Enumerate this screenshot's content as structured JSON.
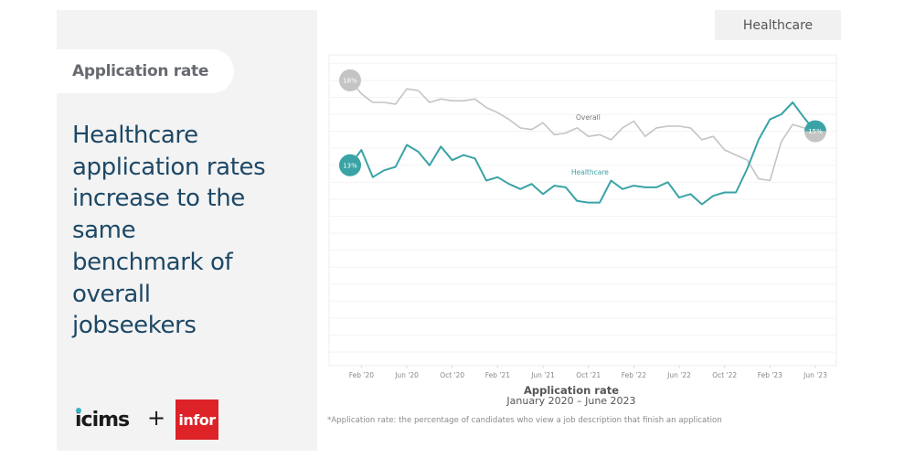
{
  "left_panel": {
    "section_label": "Application rate",
    "headline_lines": [
      "Healthcare",
      "application rates",
      "increase to the",
      "same",
      "benchmark of",
      "overall",
      "jobseekers"
    ],
    "logos": {
      "icims": "icims",
      "plus": "+",
      "infor": "infor"
    }
  },
  "tab": {
    "label": "Healthcare"
  },
  "footnote": "*Application rate: the percentage of candidates who view a job description that finish an application",
  "colors": {
    "overall": "#c4c4c4",
    "healthcare": "#3aa3a6",
    "headline": "#1d4866",
    "infor_red": "#dd2228"
  },
  "chart_data": {
    "type": "line",
    "title": "Application rate",
    "subtitle": "January 2020 – June 2023",
    "xlabel": "Application rate",
    "xsub": "January 2020 – June 2023",
    "ylabel": "",
    "ylim": [
      1.2,
      19.5
    ],
    "grid": true,
    "x_tick_labels": [
      "Feb '20",
      "Jun '20",
      "Oct '20",
      "Feb '21",
      "Jun '21",
      "Oct '21",
      "Feb '22",
      "Jun '22",
      "Oct '22",
      "Feb '23",
      "Jun '23"
    ],
    "x_tick_month_index": [
      1,
      5,
      9,
      13,
      17,
      21,
      25,
      29,
      33,
      37,
      41
    ],
    "x_months": 42,
    "series": [
      {
        "name": "Overall",
        "color": "#c4c4c4",
        "start_label": "18%",
        "values": [
          18.0,
          17.2,
          16.7,
          16.7,
          16.6,
          17.5,
          17.4,
          16.7,
          16.9,
          16.8,
          16.8,
          16.9,
          16.4,
          16.1,
          15.7,
          15.2,
          15.1,
          15.5,
          14.8,
          14.9,
          15.2,
          14.7,
          14.8,
          14.5,
          15.2,
          15.6,
          14.7,
          15.2,
          15.3,
          15.3,
          15.2,
          14.5,
          14.7,
          13.9,
          13.6,
          13.3,
          12.2,
          12.1,
          14.4,
          15.4,
          15.2,
          15.0
        ]
      },
      {
        "name": "Healthcare",
        "color": "#3aa3a6",
        "start_label": "13%",
        "values": [
          13.0,
          13.9,
          12.3,
          12.7,
          12.9,
          14.2,
          13.8,
          13.0,
          14.1,
          13.3,
          13.6,
          13.4,
          12.1,
          12.3,
          11.9,
          11.6,
          11.9,
          11.3,
          11.8,
          11.7,
          10.9,
          10.8,
          10.8,
          12.1,
          11.6,
          11.8,
          11.7,
          11.7,
          12.0,
          11.1,
          11.3,
          10.7,
          11.2,
          11.4,
          11.4,
          12.8,
          14.5,
          15.7,
          16.0,
          16.7,
          15.8,
          15.0
        ]
      }
    ],
    "end_label": "15%"
  }
}
